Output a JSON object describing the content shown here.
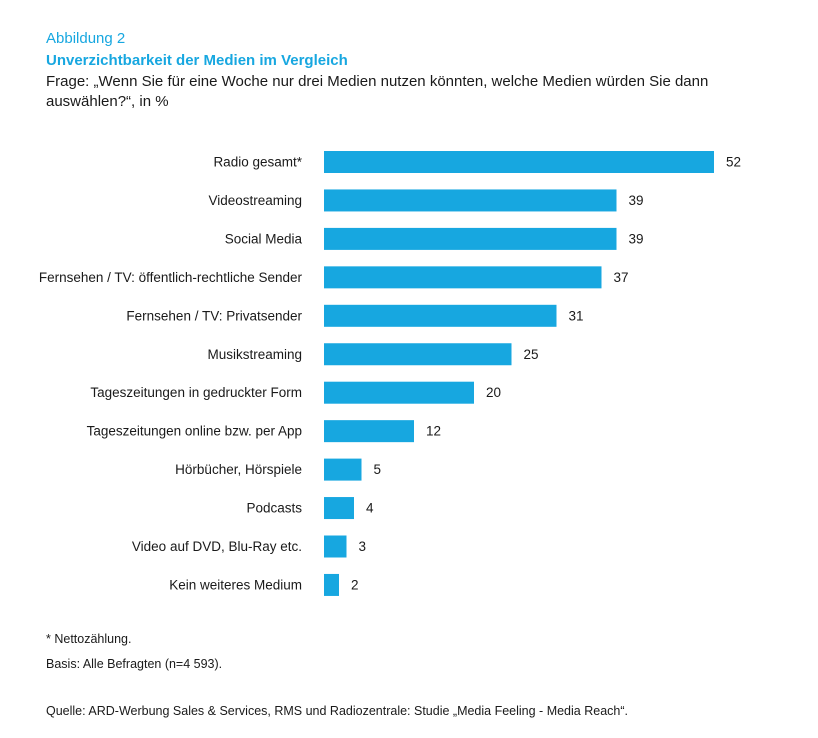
{
  "header": {
    "figure_label": "Abbildung 2",
    "title": "Unverzichtbarkeit der Medien im Vergleich",
    "question": "Frage: „Wenn Sie für eine Woche nur drei Medien nutzen könnten, welche Medien würden Sie dann auswählen?“, in %"
  },
  "colors": {
    "accent": "#17a7e0",
    "bar": "#17a7e0",
    "text": "#1a1a1a"
  },
  "chart_data": {
    "type": "bar",
    "orientation": "horizontal",
    "categories": [
      "Radio gesamt*",
      "Videostreaming",
      "Social Media",
      "Fernsehen / TV: öffentlich-rechtliche Sender",
      "Fernsehen / TV: Privatsender",
      "Musikstreaming",
      "Tageszeitungen in gedruckter Form",
      "Tageszeitungen online bzw. per App",
      "Hörbücher, Hörspiele",
      "Podcasts",
      "Video auf DVD, Blu-Ray etc.",
      "Kein weiteres Medium"
    ],
    "values": [
      52,
      39,
      39,
      37,
      31,
      25,
      20,
      12,
      5,
      4,
      3,
      2
    ],
    "xlim": [
      0,
      52
    ],
    "grid": false,
    "data_labels": true
  },
  "footnotes": {
    "net": "* Nettozählung.",
    "base": "Basis: Alle Befragten (n=4 593).",
    "source": "Quelle: ARD-Werbung Sales & Services, RMS und Radiozentrale: Studie „Media Feeling - Media Reach“."
  }
}
